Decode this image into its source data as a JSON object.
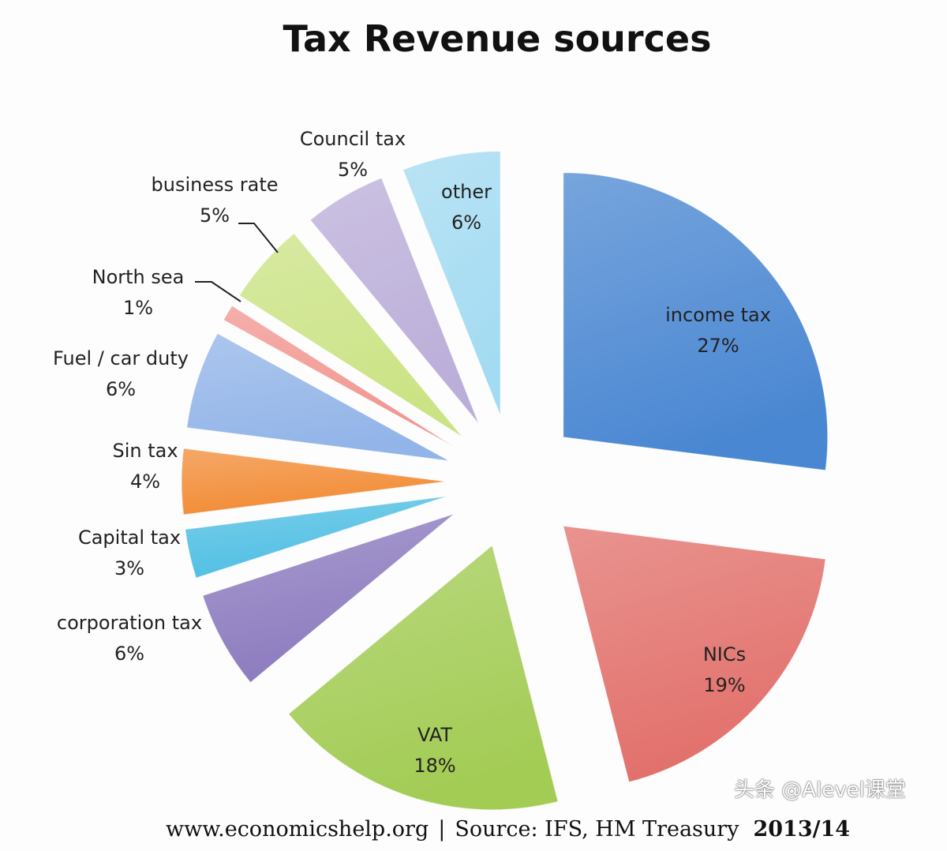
{
  "chart_data": {
    "type": "pie",
    "title": "Tax Revenue sources",
    "exploded": true,
    "slices": [
      {
        "label": "income tax",
        "value": 27,
        "display": "27%",
        "color": "#4a87d2"
      },
      {
        "label": "NICs",
        "value": 19,
        "display": "19%",
        "color": "#e2706b"
      },
      {
        "label": "VAT",
        "value": 18,
        "display": "18%",
        "color": "#a3cc55"
      },
      {
        "label": "corporation tax",
        "value": 6,
        "display": "6%",
        "color": "#8c7bbf"
      },
      {
        "label": "Capital tax",
        "value": 3,
        "display": "3%",
        "color": "#4fbfe3"
      },
      {
        "label": "Sin tax",
        "value": 4,
        "display": "4%",
        "color": "#f28c36"
      },
      {
        "label": "Fuel / car duty",
        "value": 6,
        "display": "6%",
        "color": "#92b4e8"
      },
      {
        "label": "North sea",
        "value": 1,
        "display": "1%",
        "color": "#f2958f"
      },
      {
        "label": "business rate",
        "value": 5,
        "display": "5%",
        "color": "#cbe384"
      },
      {
        "label": "Council tax",
        "value": 5,
        "display": "5%",
        "color": "#bbaed9"
      },
      {
        "label": "other",
        "value": 6,
        "display": "6%",
        "color": "#a3dbf2"
      }
    ]
  },
  "footer": {
    "website": "www.economicshelp.org",
    "source": "Source: IFS, HM Treasury",
    "year": "2013/14"
  },
  "watermark": "头条 @Alevel课堂"
}
